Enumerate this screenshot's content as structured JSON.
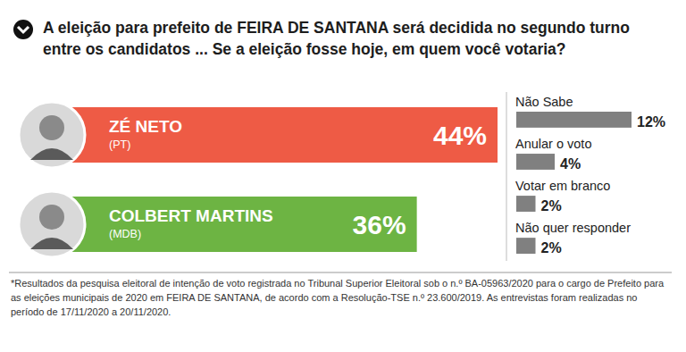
{
  "chart_data": [
    {
      "type": "bar",
      "orientation": "horizontal",
      "title": "A eleição para prefeito de FEIRA DE SANTANA será decidida no segundo turno entre os candidatos ... Se a eleição fosse hoje, em quem você votaria?",
      "categories": [
        "ZÉ NETO",
        "COLBERT MARTINS"
      ],
      "parties": [
        "(PT)",
        "(MDB)"
      ],
      "values": [
        44,
        36
      ],
      "value_labels": [
        "44%",
        "36%"
      ],
      "colors": [
        "#ee5b45",
        "#6db443"
      ],
      "data_labels": true,
      "tick_labels": false,
      "footnote": "*Resultados da pesquisa eleitoral de intenção de voto registrada no Tribunal Superior Eleitoral sob o n.º BA-05963/2020 para o cargo de Prefeito para as eleições municipais de 2020 em FEIRA DE SANTANA, de acordo com a Resolução-TSE n.º 23.600/2019. As entrevistas foram realizadas no período de 17/11/2020 a 20/11/2020."
    },
    {
      "type": "bar",
      "orientation": "horizontal",
      "categories": [
        "Não Sabe",
        "Anular o voto",
        "Votar em branco",
        "Não quer responder"
      ],
      "values": [
        12,
        4,
        2,
        2
      ],
      "value_labels": [
        "12%",
        "4%",
        "2%",
        "2%"
      ],
      "color": "#808080",
      "data_labels": true,
      "tick_labels": false
    }
  ]
}
